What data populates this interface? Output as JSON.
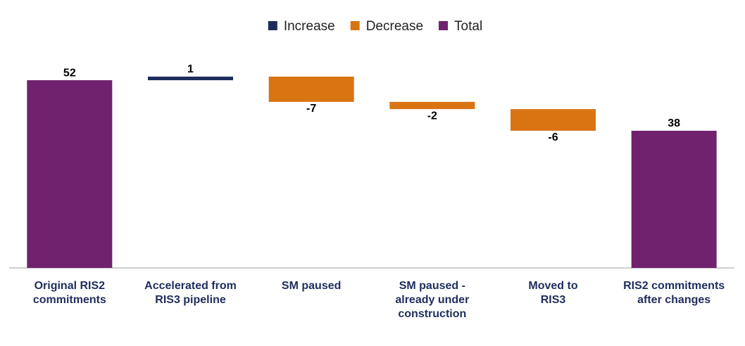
{
  "chart_data": {
    "type": "waterfall",
    "categories": [
      "Original RIS2 commitments",
      "Accelerated from RIS3 pipeline",
      "SM paused",
      "SM paused - already under construction",
      "Moved to RIS3",
      "RIS2 commitments after changes"
    ],
    "series": [
      {
        "name": "Increase",
        "color": "#1f2d5c",
        "values": [
          null,
          1,
          null,
          null,
          null,
          null
        ]
      },
      {
        "name": "Decrease",
        "color": "#d97413",
        "values": [
          null,
          null,
          -7,
          -2,
          -6,
          null
        ]
      },
      {
        "name": "Total",
        "color": "#70226e",
        "values": [
          52,
          null,
          null,
          null,
          null,
          38
        ]
      }
    ],
    "ylim": [
      0,
      60
    ]
  }
}
